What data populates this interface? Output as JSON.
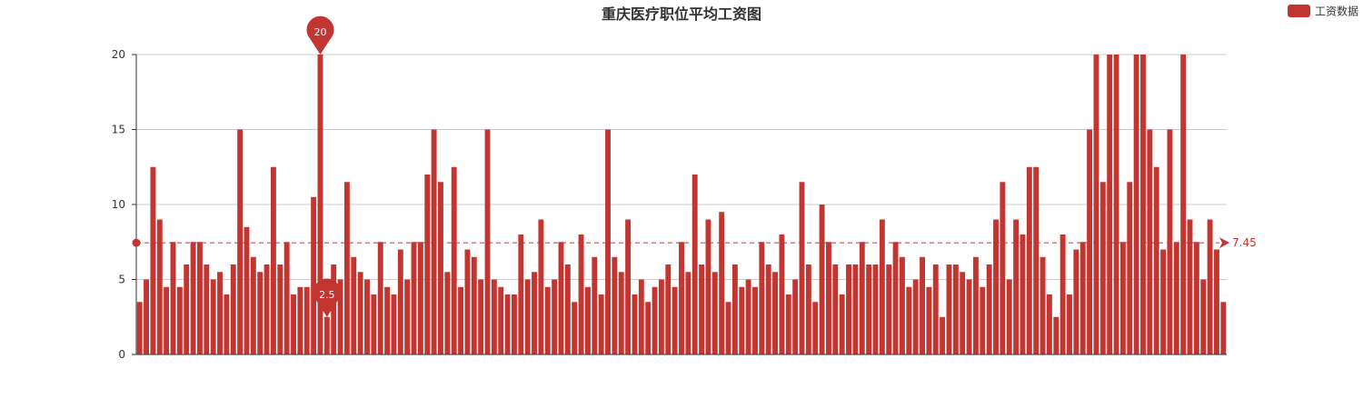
{
  "chart_data": {
    "type": "bar",
    "title": "重庆医疗职位平均工资图",
    "legend": {
      "label": "工资数据",
      "position": "top-right"
    },
    "series_color": "#c23531",
    "ylim": [
      0,
      20
    ],
    "yticks": [
      0,
      5,
      10,
      15,
      20
    ],
    "grid": true,
    "values": [
      3.5,
      5,
      12.5,
      9,
      4.5,
      7.5,
      4.5,
      6,
      7.5,
      7.5,
      6,
      5,
      5.5,
      4,
      6,
      15,
      8.5,
      6.5,
      5.5,
      6,
      12.5,
      6,
      7.5,
      4,
      4.5,
      4.5,
      10.5,
      20,
      2.5,
      6,
      5,
      11.5,
      6.5,
      5.5,
      5,
      4,
      7.5,
      4.5,
      4,
      7,
      5,
      7.5,
      7.5,
      12,
      15,
      11.5,
      5.5,
      12.5,
      4.5,
      7,
      6.5,
      5,
      15,
      5,
      4.5,
      4,
      4,
      8,
      5,
      5.5,
      9,
      4.5,
      5,
      7.5,
      6,
      3.5,
      8,
      4.5,
      6.5,
      4,
      15,
      6.5,
      5.5,
      9,
      4,
      5,
      3.5,
      4.5,
      5,
      6,
      4.5,
      7.5,
      5.5,
      12,
      6,
      9,
      5.5,
      9.5,
      3.5,
      6,
      4.5,
      5,
      4.5,
      7.5,
      6,
      5.5,
      8,
      4,
      5,
      11.5,
      6,
      3.5,
      10,
      7.5,
      6,
      4,
      6,
      6,
      7.5,
      6,
      6,
      9,
      6,
      7.5,
      6.5,
      4.5,
      5,
      6.5,
      4.5,
      6,
      2.5,
      6,
      6,
      5.5,
      5,
      6.5,
      4.5,
      6,
      9,
      11.5,
      5,
      9,
      8,
      12.5,
      12.5,
      6.5,
      4,
      2.5,
      8,
      4,
      7,
      7.5,
      15,
      20,
      11.5,
      20,
      20,
      7.5,
      11.5,
      20,
      20,
      15,
      12.5,
      7,
      15,
      7.5,
      20,
      9,
      7.5,
      5,
      9,
      7,
      3.5
    ],
    "mark_points": [
      {
        "type": "max",
        "label": "20"
      },
      {
        "type": "min",
        "label": "2.5"
      }
    ],
    "mark_line": {
      "type": "average",
      "value": 7.45,
      "label": "7.45"
    }
  }
}
